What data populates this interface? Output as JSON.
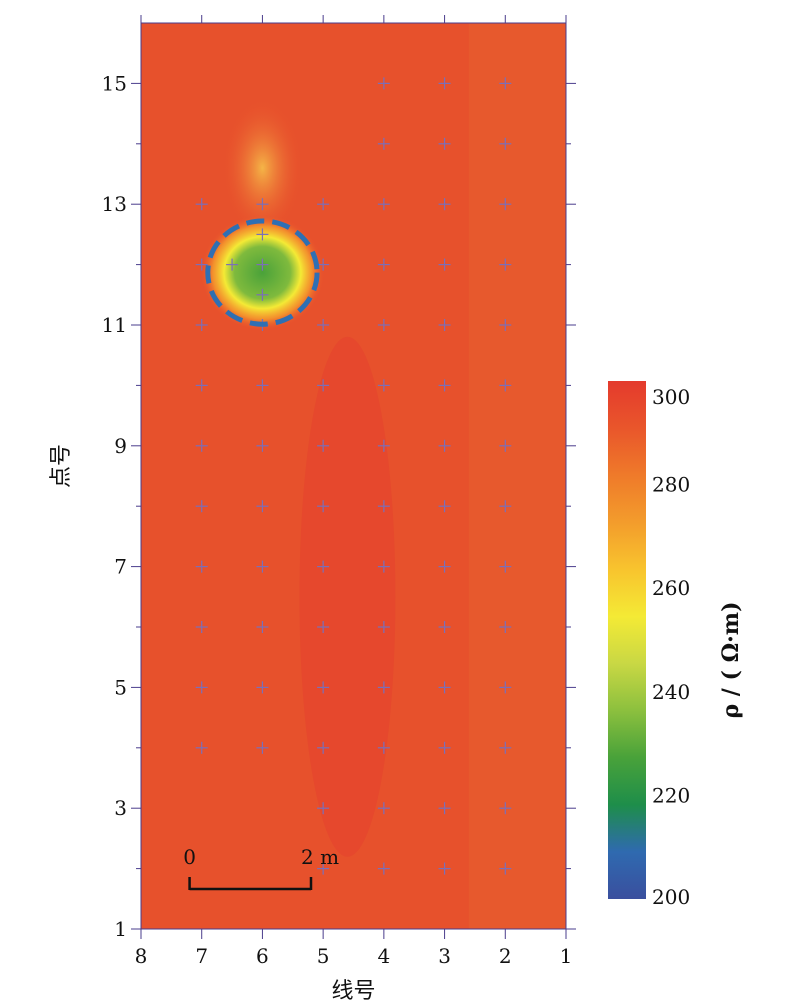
{
  "chart_data": {
    "type": "heatmap",
    "xlabel": "线号",
    "ylabel": "点号",
    "x_range": [
      8,
      1
    ],
    "y_range": [
      1,
      16
    ],
    "x_ticks": [
      8,
      7,
      6,
      5,
      4,
      3,
      2,
      1
    ],
    "y_ticks": [
      1,
      3,
      5,
      7,
      9,
      11,
      13,
      15
    ],
    "background_value": 290,
    "anomaly": {
      "center_line": 6,
      "center_point": 12,
      "min_value": 215
    },
    "measurement_points": [
      [
        4,
        15
      ],
      [
        3,
        15
      ],
      [
        2,
        15
      ],
      [
        4,
        14
      ],
      [
        3,
        14
      ],
      [
        2,
        14
      ],
      [
        7,
        13
      ],
      [
        6,
        13
      ],
      [
        5,
        13
      ],
      [
        4,
        13
      ],
      [
        3,
        13
      ],
      [
        2,
        13
      ],
      [
        6,
        12.5
      ],
      [
        6.5,
        12
      ],
      [
        6,
        12
      ],
      [
        6,
        11.5
      ],
      [
        7,
        12
      ],
      [
        5,
        12
      ],
      [
        4,
        12
      ],
      [
        3,
        12
      ],
      [
        2,
        12
      ],
      [
        7,
        11
      ],
      [
        6,
        11
      ],
      [
        5,
        11
      ],
      [
        4,
        11
      ],
      [
        3,
        11
      ],
      [
        2,
        11
      ],
      [
        7,
        10
      ],
      [
        6,
        10
      ],
      [
        5,
        10
      ],
      [
        4,
        10
      ],
      [
        3,
        10
      ],
      [
        2,
        10
      ],
      [
        7,
        9
      ],
      [
        6,
        9
      ],
      [
        5,
        9
      ],
      [
        4,
        9
      ],
      [
        3,
        9
      ],
      [
        2,
        9
      ],
      [
        7,
        8
      ],
      [
        6,
        8
      ],
      [
        5,
        8
      ],
      [
        4,
        8
      ],
      [
        3,
        8
      ],
      [
        2,
        8
      ],
      [
        7,
        7
      ],
      [
        6,
        7
      ],
      [
        5,
        7
      ],
      [
        4,
        7
      ],
      [
        3,
        7
      ],
      [
        2,
        7
      ],
      [
        7,
        6
      ],
      [
        6,
        6
      ],
      [
        5,
        6
      ],
      [
        4,
        6
      ],
      [
        3,
        6
      ],
      [
        2,
        6
      ],
      [
        7,
        5
      ],
      [
        6,
        5
      ],
      [
        5,
        5
      ],
      [
        4,
        5
      ],
      [
        3,
        5
      ],
      [
        2,
        5
      ],
      [
        7,
        4
      ],
      [
        6,
        4
      ],
      [
        5,
        4
      ],
      [
        4,
        4
      ],
      [
        3,
        4
      ],
      [
        2,
        4
      ],
      [
        5,
        3
      ],
      [
        4,
        3
      ],
      [
        3,
        3
      ],
      [
        2,
        3
      ],
      [
        5,
        2
      ],
      [
        4,
        2
      ],
      [
        3,
        2
      ],
      [
        2,
        2
      ]
    ],
    "scale_bar": {
      "start_label": "0",
      "end_label": "2 m",
      "length_m": 2
    },
    "colorbar": {
      "title": "ρ / ( Ω·m)",
      "range": [
        200,
        300
      ],
      "ticks": [
        300,
        280,
        260,
        240,
        220,
        200
      ],
      "colors": [
        "#3a4f9e",
        "#2f6ab0",
        "#1e8e4a",
        "#49a23a",
        "#8cc03e",
        "#c9d844",
        "#f4ea35",
        "#f8c42e",
        "#f39c2c",
        "#ef7a2a",
        "#e9562b",
        "#e43a2d"
      ]
    },
    "annotation": {
      "type": "dashed-circle",
      "color": "#2f6fb3",
      "center_line": 6,
      "center_point": 12,
      "radius_lines": 1
    }
  }
}
